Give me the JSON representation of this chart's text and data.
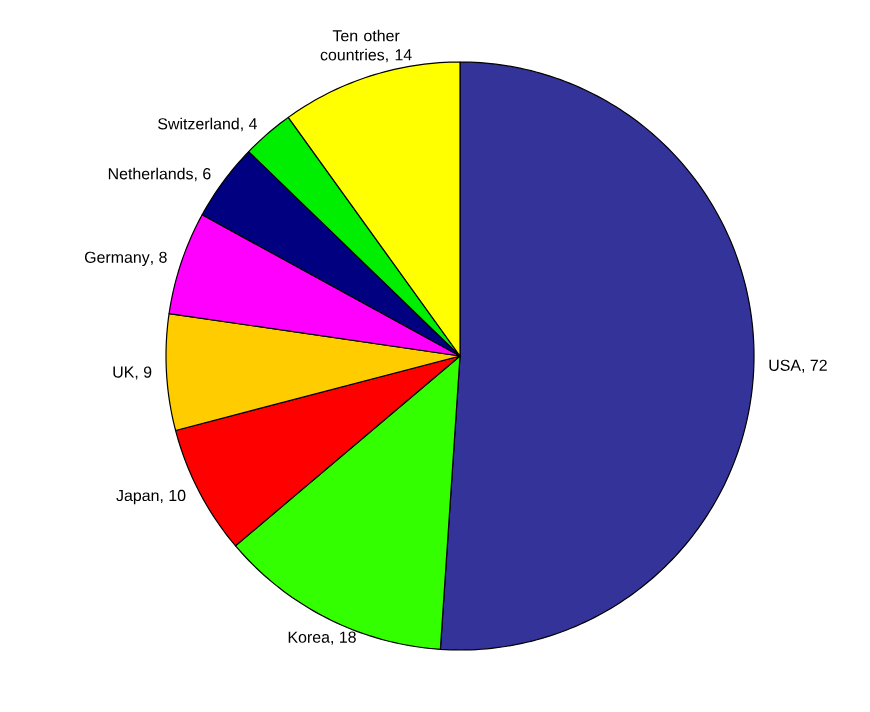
{
  "chart_data": {
    "type": "pie",
    "categories": [
      "USA",
      "Korea",
      "Japan",
      "UK",
      "Germany",
      "Netherlands",
      "Switzerland",
      "Ten other countries"
    ],
    "values": [
      72,
      18,
      10,
      9,
      8,
      6,
      4,
      14
    ],
    "value_labels": [
      ", 72",
      ", 18",
      ", 10",
      ", 9",
      ", 8",
      ", 6",
      ", 4",
      ", 14"
    ],
    "colors": [
      "#333399",
      "#33ff00",
      "#ff0000",
      "#ffcc00",
      "#ff00ff",
      "#000080",
      "#00ee00",
      "#ffff00"
    ]
  }
}
